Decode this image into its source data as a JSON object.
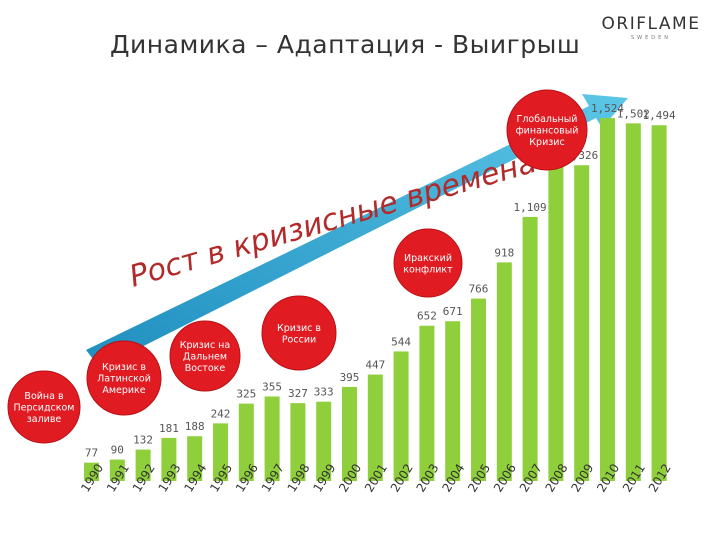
{
  "slide": {
    "title": "Динамика – Адаптация - Выигрыш"
  },
  "logo": {
    "word": "ORIFLAME",
    "sub": "SWEDEN"
  },
  "slogan": "Рост в кризисные времена!",
  "colors": {
    "bar": "#8fcf3b",
    "crisis": "#e01b22",
    "arrow": "#2aa7cf"
  },
  "chart_data": {
    "type": "bar",
    "categories": [
      "1990",
      "1991",
      "1992",
      "1993",
      "1994",
      "1995",
      "1996",
      "1997",
      "1998",
      "1999",
      "2000",
      "2001",
      "2002",
      "2003",
      "2004",
      "2005",
      "2006",
      "2007",
      "2008",
      "2009",
      "2010",
      "2011",
      "2012"
    ],
    "values": [
      77,
      90,
      132,
      181,
      188,
      242,
      325,
      355,
      327,
      333,
      395,
      447,
      544,
      652,
      671,
      766,
      918,
      1109,
      1329,
      1326,
      1524,
      1502,
      1494
    ],
    "value_labels": [
      "77",
      "90",
      "132",
      "181",
      "188",
      "242",
      "325",
      "355",
      "327",
      "333",
      "395",
      "447",
      "544",
      "652",
      "671",
      "766",
      "918",
      "1,109",
      "1,329",
      "1,326",
      "1,524",
      "1,502",
      "1,494"
    ],
    "ylim": [
      0,
      1600
    ],
    "grid": false,
    "annotations": [
      {
        "text": "Война в Персидском заливе",
        "lines": [
          "Война в",
          "Персидском",
          "заливе"
        ],
        "year": "1990"
      },
      {
        "text": "Кризис в Латинской Америке",
        "lines": [
          "Кризис в",
          "Латинской",
          "Америке"
        ],
        "year": "1994"
      },
      {
        "text": "Кризис на Дальнем Востоке",
        "lines": [
          "Кризис на",
          "Дальнем",
          "Востоке"
        ],
        "year": "1997"
      },
      {
        "text": "Кризис в России",
        "lines": [
          "Кризис в",
          "России"
        ],
        "year": "1998"
      },
      {
        "text": "Иракский конфликт",
        "lines": [
          "Иракский",
          "конфликт"
        ],
        "year": "2003"
      },
      {
        "text": "Глобальный финансовый Кризис",
        "lines": [
          "Глобальный",
          "финансовый",
          "Кризис"
        ],
        "year": "2008"
      }
    ]
  }
}
